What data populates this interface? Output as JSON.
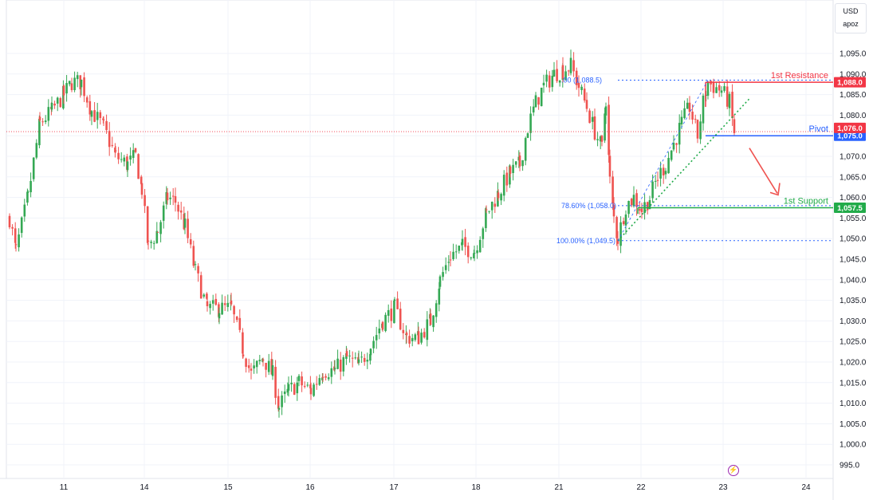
{
  "header": {
    "currency": "USD",
    "scale_mode": "apoz"
  },
  "colors": {
    "up": "#26a69a",
    "up_body": "#34a853",
    "down": "#ef5350",
    "resistance": "#f23645",
    "pivot": "#2962ff",
    "support": "#22ab4a",
    "current": "#f23645",
    "grid": "#f0f3fa",
    "fib": "#2962ff"
  },
  "chart_data": {
    "type": "candlestick",
    "y_ticks": [
      "1,095.0",
      "1,090.0",
      "1,085.0",
      "1,080.0",
      "1,075.0",
      "1,070.0",
      "1,065.0",
      "1,060.0",
      "1,055.0",
      "1,050.0",
      "1,045.0",
      "1,040.0",
      "1,035.0",
      "1,030.0",
      "1,025.0",
      "1,020.0",
      "1,015.0",
      "1,010.0",
      "1,005.0",
      "1,000.0",
      "995.0"
    ],
    "y_tick_values": [
      1095,
      1090,
      1085,
      1080,
      1075,
      1070,
      1065,
      1060,
      1055,
      1050,
      1045,
      1040,
      1035,
      1030,
      1025,
      1020,
      1015,
      1010,
      1005,
      1000,
      995
    ],
    "ylim": [
      993,
      1098
    ],
    "x_ticks": [
      "11",
      "14",
      "15",
      "16",
      "17",
      "18",
      "21",
      "22",
      "23",
      "24"
    ],
    "levels": [
      {
        "label": "1st Resistance",
        "value": 1088.0,
        "badge": "1,088.0",
        "role": "resistance"
      },
      {
        "label": "Pivot",
        "value": 1075.0,
        "badge": "1,075.0",
        "role": "pivot"
      },
      {
        "label": "1st Support",
        "value": 1057.5,
        "badge": "1,057.5",
        "role": "support"
      }
    ],
    "current_price": {
      "value": 1076.0,
      "badge": "1,076.0"
    },
    "fib_levels": [
      {
        "text": ".00 (1,088.5)",
        "value": 1088.5
      },
      {
        "text": "78.60% (1,058.0)",
        "value": 1058.0
      },
      {
        "text": "100.00% (1,049.5)",
        "value": 1049.5
      }
    ],
    "key_points": [
      {
        "x": "11",
        "y": 1089
      },
      {
        "x": "15",
        "y": 1006
      },
      {
        "x": "21",
        "y": 1092
      },
      {
        "x": "22",
        "y": 1050
      },
      {
        "x": "23",
        "y": 1088
      },
      {
        "x": "23",
        "y": 1076
      }
    ]
  }
}
